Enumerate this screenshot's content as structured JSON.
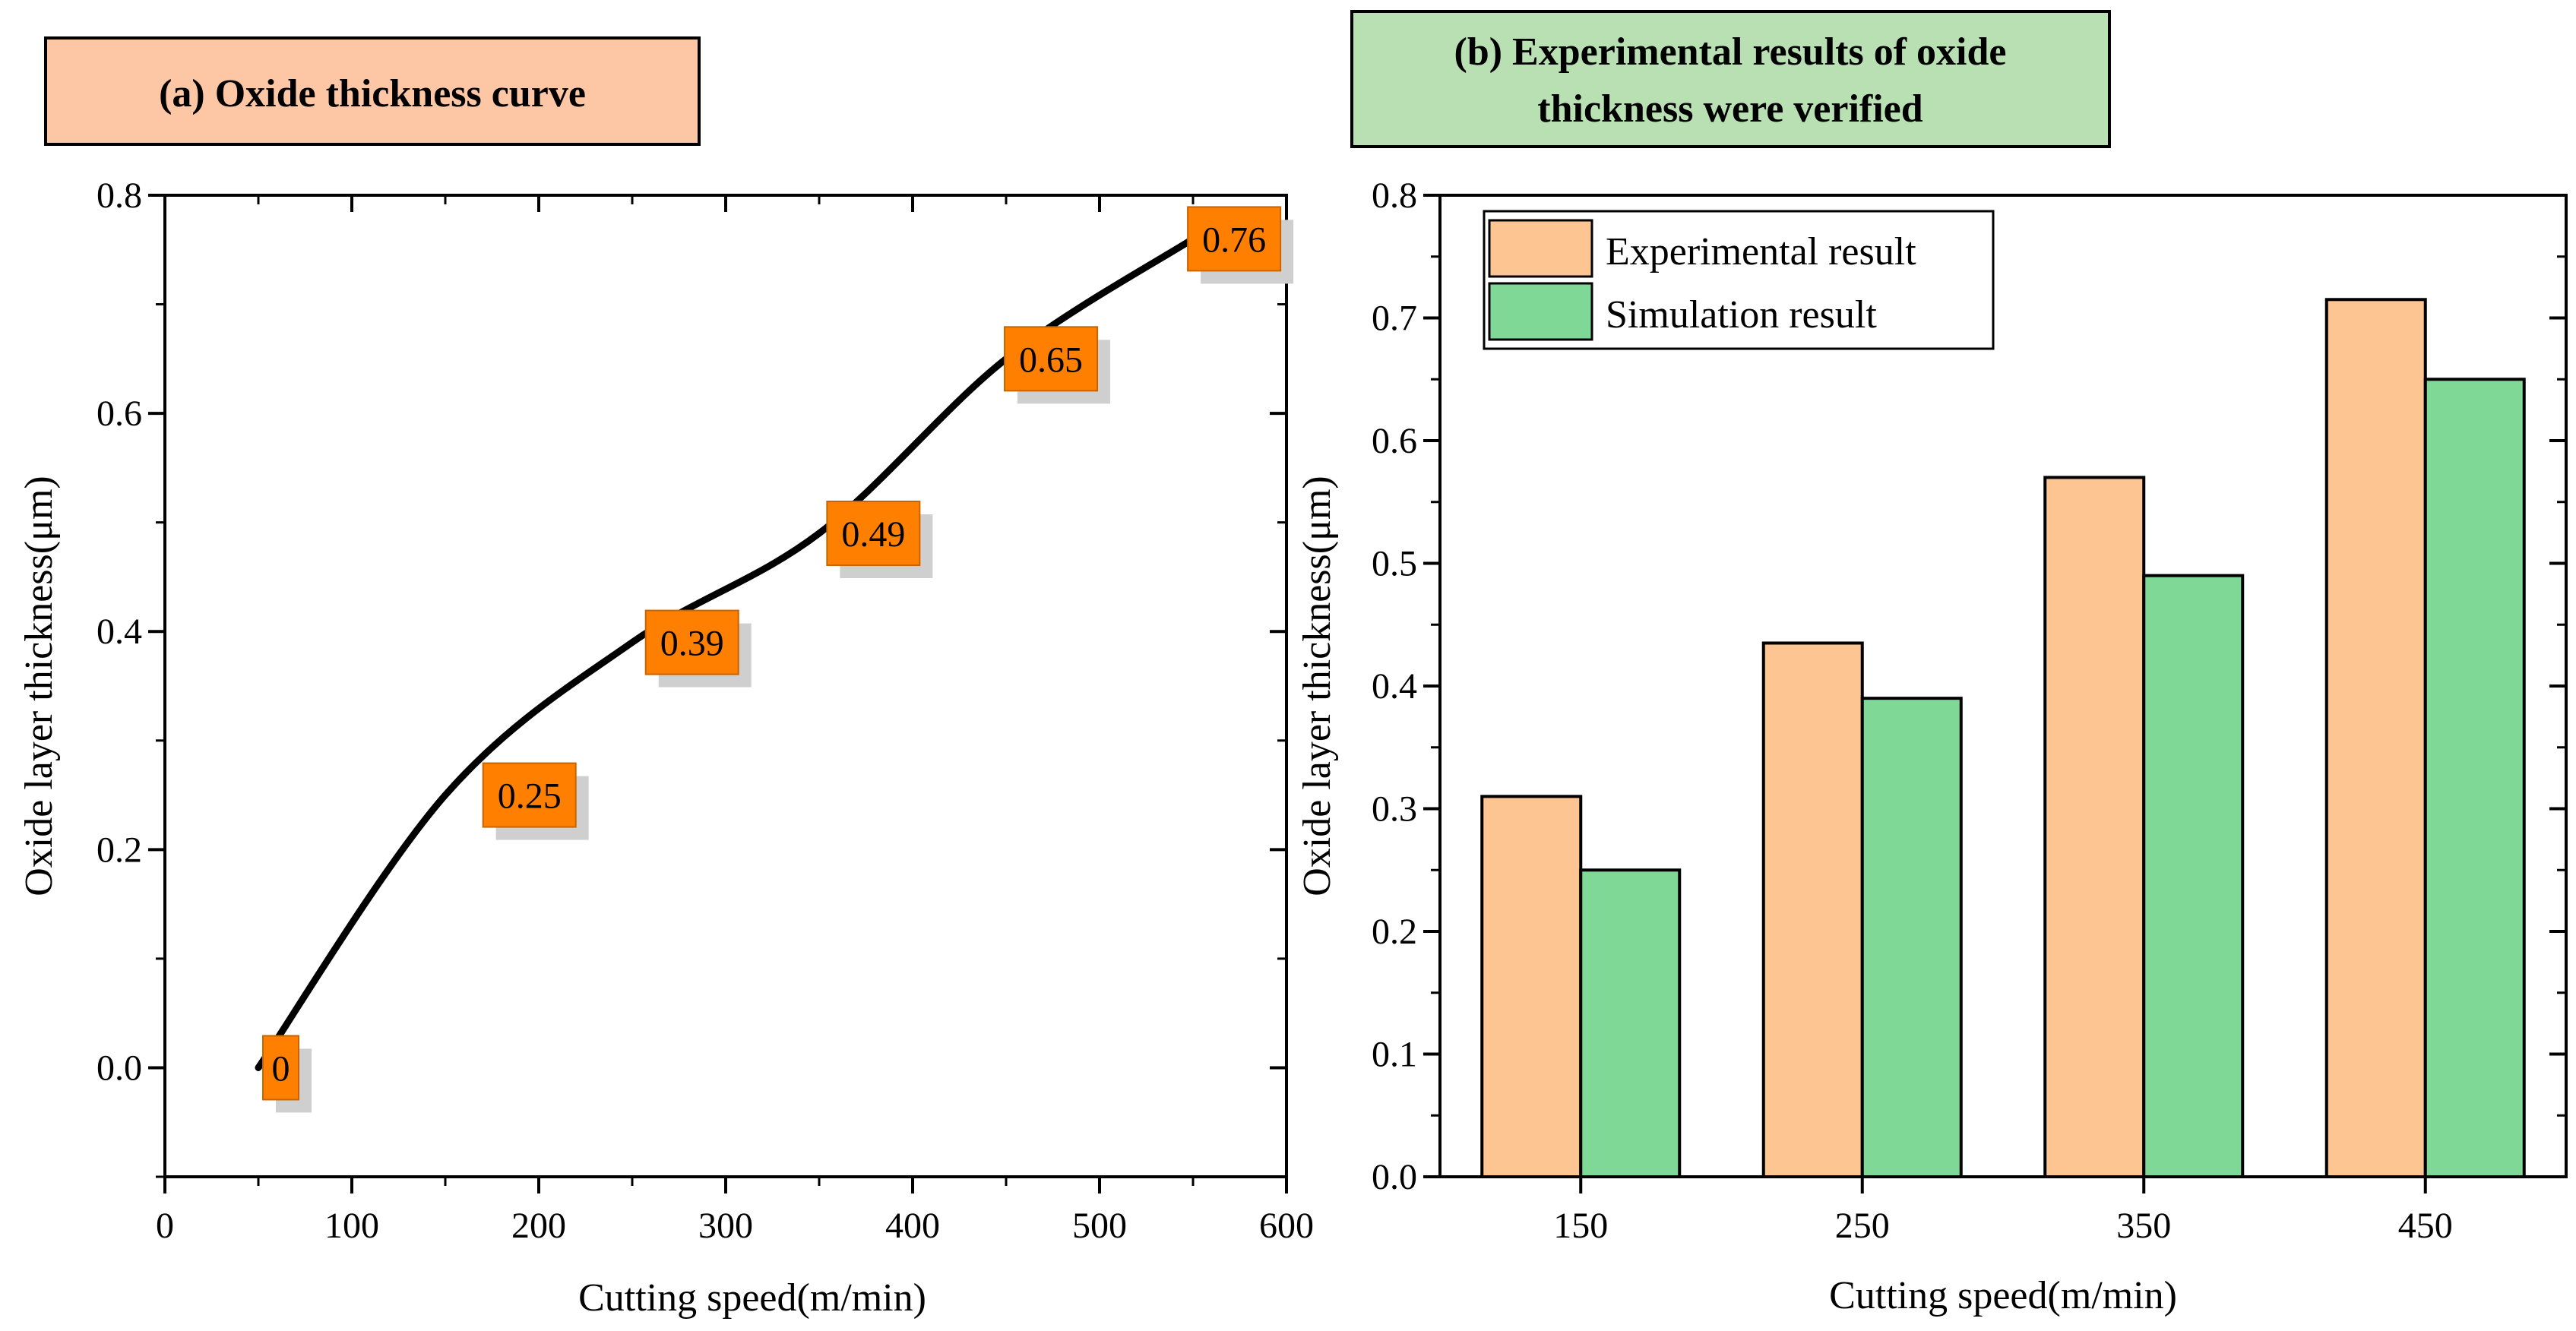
{
  "chart_data": [
    {
      "type": "line",
      "title": "(a) Oxide thickness curve",
      "title_bg": "#fdc6a4",
      "xlabel": "Cutting speed(m/min)",
      "ylabel": "Oxide layer thickness(μm)",
      "xlim": [
        0,
        600
      ],
      "ylim": [
        -0.1,
        0.8
      ],
      "xticks": [
        "0",
        "100",
        "200",
        "300",
        "400",
        "500",
        "600"
      ],
      "yticks": [
        "0.0",
        "0.2",
        "0.4",
        "0.6",
        "0.8"
      ],
      "x": [
        50,
        150,
        250,
        350,
        450,
        550
      ],
      "y": [
        0,
        0.25,
        0.39,
        0.49,
        0.65,
        0.76
      ],
      "labels": [
        "0",
        "0.25",
        "0.39",
        "0.49",
        "0.65",
        "0.76"
      ],
      "label_x": [
        62,
        195,
        282,
        379,
        474,
        572
      ],
      "line_color": "#000000",
      "label_color": "#ff8000",
      "grid": false
    },
    {
      "type": "bar",
      "title": "(b) Experimental results of oxide thickness were verified",
      "title_lines": [
        "(b) Experimental results of oxide",
        "thickness were verified"
      ],
      "title_bg": "#b9e0b3",
      "xlabel": "Cutting speed(m/min)",
      "ylabel": "Oxide layer thickness(μm)",
      "ylim": [
        0,
        0.8
      ],
      "yticks": [
        "0.0",
        "0.1",
        "0.2",
        "0.3",
        "0.4",
        "0.5",
        "0.6",
        "0.7",
        "0.8"
      ],
      "categories": [
        "150",
        "250",
        "350",
        "450"
      ],
      "series": [
        {
          "name": "Experimental result",
          "color": "#fdc592",
          "values": [
            0.31,
            0.435,
            0.57,
            0.715
          ]
        },
        {
          "name": "Simulation result",
          "color": "#7fd896",
          "values": [
            0.25,
            0.39,
            0.49,
            0.65
          ]
        }
      ],
      "legend": "top-left",
      "grid": false
    }
  ]
}
